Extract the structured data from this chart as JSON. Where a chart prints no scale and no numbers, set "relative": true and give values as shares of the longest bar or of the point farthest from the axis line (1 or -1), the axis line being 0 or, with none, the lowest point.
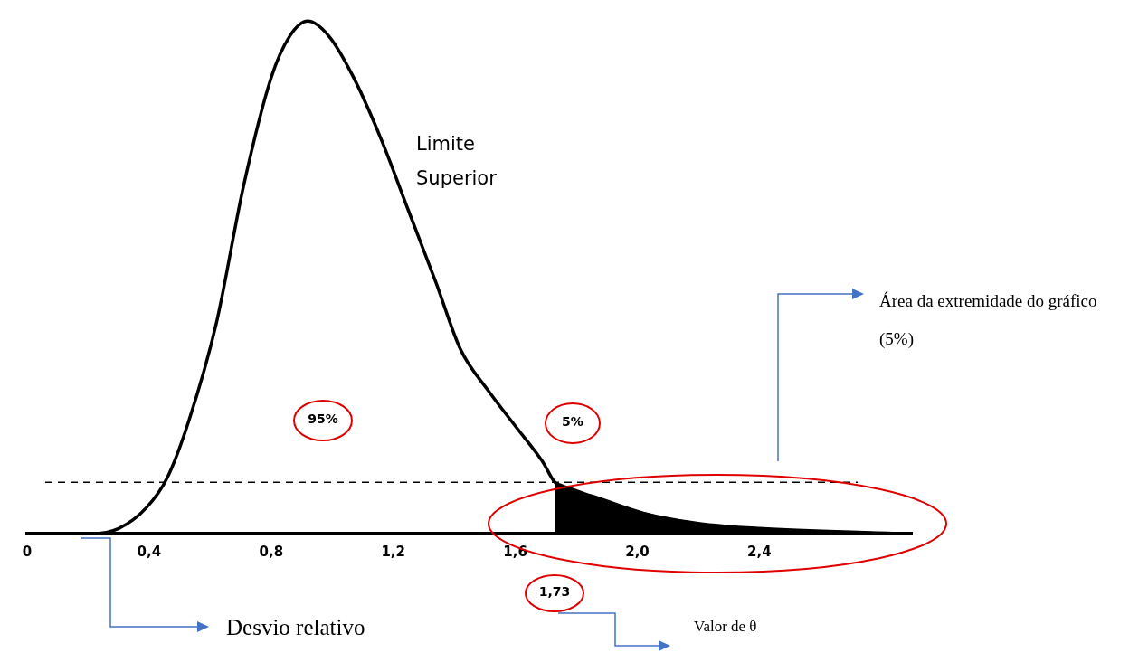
{
  "chart_data": {
    "type": "line",
    "relative": true,
    "legend": false,
    "grid": false,
    "marker": "none",
    "xlim": [
      0,
      2.9
    ],
    "xticks": [
      0,
      {
        "value": 0.4,
        "label": "0,4"
      },
      {
        "value": 0.8,
        "label": "0,8"
      },
      {
        "value": 1.2,
        "label": "1,2"
      },
      {
        "value": 1.6,
        "label": "1,6"
      },
      {
        "value": 2.0,
        "label": "2,0"
      },
      {
        "value": 2.4,
        "label": "2,4"
      }
    ],
    "series": [
      {
        "color": "#000000",
        "x": [
          0,
          0.21,
          0.3,
          0.39,
          0.46,
          0.53,
          0.62,
          0.71,
          0.8,
          0.86,
          0.92,
          0.99,
          1.07,
          1.16,
          1.25,
          1.34,
          1.42,
          1.51,
          1.6,
          1.69,
          1.73,
          1.87,
          2.02,
          2.2,
          2.4,
          2.85
        ],
        "values": [
          0,
          0,
          0.01,
          0.05,
          0.11,
          0.22,
          0.41,
          0.68,
          0.89,
          0.97,
          1,
          0.97,
          0.89,
          0.77,
          0.63,
          0.49,
          0.36,
          0.28,
          0.21,
          0.14,
          0.1,
          0.07,
          0.04,
          0.02,
          0.01,
          0
        ]
      },
      {
        "type": "area",
        "color": "#000000",
        "x": [
          1.73,
          1.87,
          2.02,
          2.2,
          2.4,
          2.85
        ],
        "values": [
          0.1,
          0.07,
          0.04,
          0.02,
          0.01,
          0
        ]
      }
    ],
    "ref_lines": [
      {
        "axis": "y",
        "value": 0.1,
        "line_style": "dashed",
        "color": "#000000"
      }
    ],
    "annotations": [
      "Limite Superior",
      "95%",
      "5%",
      "1,73",
      "Área da extremidade do gráfico (5%)",
      "Desvio relativo",
      "Valor de θ"
    ]
  }
}
